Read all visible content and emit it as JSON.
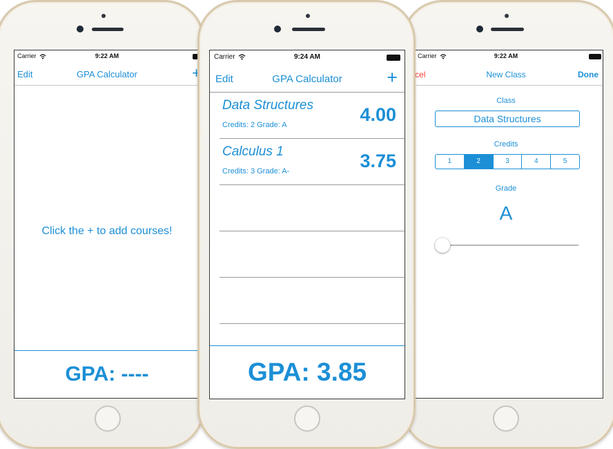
{
  "colors": {
    "accent": "#1c8fd6",
    "cancel": "#ff3b30",
    "divider": "#9a9a9a"
  },
  "screen1": {
    "status": {
      "carrier": "Carrier",
      "time": "9:22 AM"
    },
    "nav": {
      "left": "Edit",
      "title": "GPA Calculator",
      "right": "+"
    },
    "empty_message": "Click the + to add courses!",
    "gpa_label": "GPA: ----"
  },
  "screen2": {
    "status": {
      "carrier": "Carrier",
      "time": "9:24 AM"
    },
    "nav": {
      "left": "Edit",
      "title": "GPA Calculator",
      "right": "+"
    },
    "courses": [
      {
        "name": "Data Structures",
        "meta": "Credits: 2 Grade: A",
        "gpa": "4.00"
      },
      {
        "name": "Calculus 1",
        "meta": "Credits: 3 Grade: A-",
        "gpa": "3.75"
      }
    ],
    "gpa_label": "GPA: 3.85"
  },
  "screen3": {
    "status": {
      "carrier": "Carrier",
      "time": "9:22 AM"
    },
    "nav": {
      "left": "Cancel",
      "title": "New Class",
      "right": "Done"
    },
    "class_label": "Class",
    "class_value": "Data Structures",
    "credits_label": "Credits",
    "credit_options": [
      "1",
      "2",
      "3",
      "4",
      "5"
    ],
    "selected_credit": "2",
    "grade_label": "Grade",
    "grade_value": "A",
    "grade_slider_level": 0.0
  }
}
